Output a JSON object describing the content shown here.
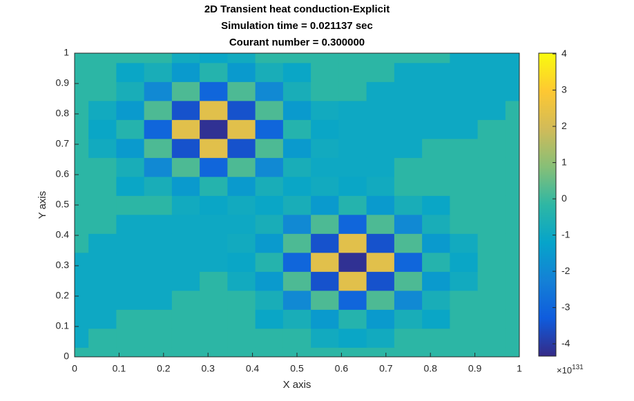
{
  "chart_data": {
    "type": "contour",
    "title": [
      "2D Transient heat conduction-Explicit",
      "Simulation time = 0.021137 sec",
      "Courant number = 0.300000"
    ],
    "xlabel": "X axis",
    "ylabel": "Y axis",
    "xlim": [
      0,
      1
    ],
    "ylim": [
      0,
      1
    ],
    "xticks": [
      0,
      0.1,
      0.2,
      0.3,
      0.4,
      0.5,
      0.6,
      0.7,
      0.8,
      0.9,
      1
    ],
    "yticks": [
      0,
      0.1,
      0.2,
      0.3,
      0.4,
      0.5,
      0.6,
      0.7,
      0.8,
      0.9,
      1
    ],
    "x": [
      0,
      0.0625,
      0.125,
      0.1875,
      0.25,
      0.3125,
      0.375,
      0.4375,
      0.5,
      0.5625,
      0.625,
      0.6875,
      0.75,
      0.8125,
      0.875,
      0.9375,
      1
    ],
    "y": [
      0,
      0.0625,
      0.125,
      0.1875,
      0.25,
      0.3125,
      0.375,
      0.4375,
      0.5,
      0.5625,
      0.625,
      0.6875,
      0.75,
      0.8125,
      0.875,
      0.9375,
      1
    ],
    "z": [
      [
        -0.2,
        -0.2,
        -0.2,
        -0.2,
        -0.2,
        -0.2,
        -0.2,
        -0.2,
        -0.2,
        -0.2,
        -0.2,
        -0.2,
        -0.2,
        -0.2,
        -0.2,
        -0.2,
        -0.2
      ],
      [
        -1,
        -0.2,
        -0.2,
        -0.2,
        -0.2,
        -0.2,
        -0.2,
        -0.2,
        -0.2,
        -0.9,
        -1.1,
        -0.9,
        -0.2,
        -0.2,
        -0.2,
        -0.2,
        -0.2
      ],
      [
        -1,
        -1,
        -0.2,
        -0.2,
        -0.2,
        -0.2,
        -0.2,
        -1.1,
        -0.7,
        -1.5,
        -0.4,
        -1.5,
        -0.7,
        -1.1,
        -0.2,
        -0.2,
        -0.2
      ],
      [
        -1,
        -1,
        -1,
        -1,
        -0.2,
        -0.2,
        -0.2,
        -0.7,
        -2,
        0.2,
        -3,
        0.2,
        -2,
        -0.7,
        -0.2,
        -0.2,
        -0.2
      ],
      [
        -1,
        -1,
        -1,
        -1,
        -1,
        -0.2,
        -0.9,
        -1.5,
        0.2,
        -3.5,
        2.3,
        -3.5,
        0.2,
        -1.5,
        -0.9,
        -0.2,
        -0.2
      ],
      [
        -1,
        -1,
        -1,
        -1,
        -1,
        -1,
        -1.1,
        -0.4,
        -3,
        2.3,
        -4.2,
        2.3,
        -3,
        -0.4,
        -1.1,
        -0.2,
        -0.2
      ],
      [
        -0.2,
        -1,
        -1,
        -1,
        -1,
        -1,
        -0.9,
        -1.5,
        0.2,
        -3.5,
        2.3,
        -3.5,
        0.2,
        -1.5,
        -0.9,
        -0.2,
        -0.2
      ],
      [
        -0.2,
        -0.2,
        -1,
        -1,
        -1,
        -1,
        -1,
        -0.7,
        -2,
        0.2,
        -3,
        0.2,
        -2,
        -0.7,
        -0.2,
        -0.2,
        -0.2
      ],
      [
        -0.2,
        -0.2,
        -0.2,
        -0.2,
        -0.9,
        -1.1,
        -0.9,
        -1.1,
        -0.7,
        -1.5,
        -0.4,
        -1.5,
        -0.7,
        -1.1,
        -0.2,
        -0.2,
        -0.2
      ],
      [
        -0.2,
        -0.2,
        -1.1,
        -0.7,
        -1.5,
        -0.4,
        -1.5,
        -0.7,
        -1.1,
        -0.9,
        -1.1,
        -0.9,
        -0.2,
        -0.2,
        -0.2,
        -0.2,
        -0.2
      ],
      [
        -0.2,
        -0.2,
        -0.7,
        -2,
        0.2,
        -3,
        0.2,
        -2,
        -0.7,
        -1,
        -1,
        -1,
        -0.2,
        -0.2,
        -0.2,
        -0.2,
        -0.2
      ],
      [
        -0.2,
        -0.9,
        -1.5,
        0.2,
        -3.5,
        2.3,
        -3.5,
        0.2,
        -1.5,
        -0.9,
        -1,
        -1,
        -1,
        -0.2,
        -0.2,
        -0.2,
        -0.2
      ],
      [
        -0.2,
        -1.1,
        -0.4,
        -3,
        2.3,
        -4.2,
        2.3,
        -3,
        -0.4,
        -1.1,
        -1,
        -1,
        -1,
        -1,
        -1,
        -0.2,
        -0.2
      ],
      [
        -0.2,
        -0.9,
        -1.5,
        0.2,
        -3.5,
        2.3,
        -3.5,
        0.2,
        -1.5,
        -0.9,
        -1,
        -1,
        -1,
        -1,
        -1,
        -1,
        -0.2
      ],
      [
        -0.2,
        -0.2,
        -0.7,
        -2,
        0.2,
        -3,
        0.2,
        -2,
        -0.7,
        -0.2,
        -0.2,
        -1,
        -1,
        -1,
        -1,
        -1,
        -1
      ],
      [
        -0.2,
        -0.2,
        -1.1,
        -0.7,
        -1.5,
        -0.4,
        -1.5,
        -0.7,
        -1.1,
        -0.2,
        -0.2,
        -0.2,
        -1,
        -1,
        -1,
        -1,
        -1
      ],
      [
        -0.2,
        -0.2,
        -0.2,
        -0.2,
        -0.9,
        -1.1,
        -0.9,
        -0.2,
        -0.2,
        -0.2,
        -0.2,
        -0.2,
        -0.2,
        -0.2,
        -1,
        -1,
        -1
      ]
    ],
    "clim": [
      -4.34,
      4.02
    ],
    "cticks": [
      -4,
      -3,
      -2,
      -1,
      0,
      1,
      2,
      3,
      4
    ],
    "colorbar_multiplier": {
      "base": "×10",
      "exponent": "131"
    },
    "colormap": [
      "#352a87",
      "#0f5cdd",
      "#1481d6",
      "#06a4ca",
      "#2eb7a4",
      "#87bf77",
      "#d1bb59",
      "#fec832",
      "#f9fb0e"
    ]
  }
}
